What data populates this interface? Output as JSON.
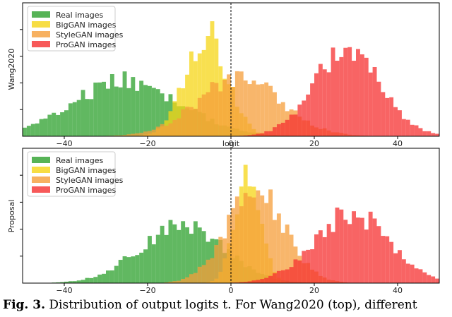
{
  "chart_data": [
    {
      "type": "bar",
      "ylabel": "Wang2020",
      "xlabel": "",
      "xlim": [
        -50,
        50
      ],
      "xticks": [
        -40,
        -20,
        0,
        20,
        40
      ],
      "bin_width": 1,
      "legend_position": "top-left",
      "zero_line": 0,
      "series": [
        {
          "name": "Real images",
          "color": "#2ca02c",
          "mean": -25,
          "sd": 13,
          "peak": 0.48
        },
        {
          "name": "BigGAN images",
          "color": "#f5d515",
          "mean": -6,
          "sd": 5,
          "peak": 0.9
        },
        {
          "name": "StyleGAN images",
          "color": "#f59d3a",
          "mean": 2,
          "sd": 10,
          "peak": 0.5
        },
        {
          "name": "ProGAN images",
          "color": "#f53030",
          "mean": 28,
          "sd": 8,
          "peak": 0.75
        }
      ]
    },
    {
      "type": "bar",
      "ylabel": "Proposal",
      "xlabel": "logit",
      "xlim": [
        -50,
        50
      ],
      "xticks": [
        -40,
        -20,
        0,
        20,
        40
      ],
      "bin_width": 1,
      "legend_position": "top-left",
      "zero_line": 0,
      "series": [
        {
          "name": "Real images",
          "color": "#2ca02c",
          "mean": -12,
          "sd": 10,
          "peak": 0.5
        },
        {
          "name": "BigGAN images",
          "color": "#f5d515",
          "mean": 4,
          "sd": 3,
          "peak": 1.0
        },
        {
          "name": "StyleGAN images",
          "color": "#f59d3a",
          "mean": 6,
          "sd": 7,
          "peak": 0.78
        },
        {
          "name": "ProGAN images",
          "color": "#f53030",
          "mean": 29,
          "sd": 9,
          "peak": 0.6
        }
      ]
    }
  ],
  "caption": {
    "label": "Fig. 3.",
    "text": "Distribution of output logits t. For Wang2020 (top), different"
  }
}
